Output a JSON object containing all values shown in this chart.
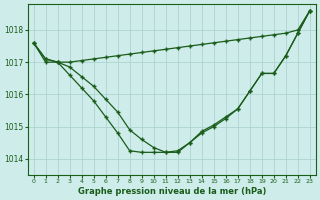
{
  "xlabel": "Graphe pression niveau de la mer (hPa)",
  "background_color": "#ceecea",
  "grid_color": "#aed4d0",
  "line_color": "#1a5c1a",
  "x_ticks": [
    0,
    1,
    2,
    3,
    4,
    5,
    6,
    7,
    8,
    9,
    10,
    11,
    12,
    13,
    14,
    15,
    16,
    17,
    18,
    19,
    20,
    21,
    22,
    23
  ],
  "ylim": [
    1013.5,
    1018.8
  ],
  "yticks": [
    1014,
    1015,
    1016,
    1017,
    1018
  ],
  "series1": [
    1017.6,
    1017.1,
    1017.0,
    1016.6,
    1016.2,
    1015.8,
    1015.3,
    1014.8,
    1014.25,
    1014.2,
    1014.2,
    1014.2,
    1014.2,
    1014.5,
    1014.8,
    1015.0,
    1015.25,
    1015.55,
    1016.1,
    1016.65,
    1016.65,
    1017.2,
    1017.9,
    1018.6
  ],
  "series2": [
    1017.6,
    1017.1,
    1017.0,
    1016.85,
    1016.55,
    1016.25,
    1015.85,
    1015.45,
    1014.9,
    1014.6,
    1014.35,
    1014.2,
    1014.25,
    1014.5,
    1014.85,
    1015.05,
    1015.3,
    1015.55,
    1016.1,
    1016.65,
    1016.65,
    1017.2,
    1017.9,
    1018.6
  ],
  "series3": [
    1017.6,
    1017.0,
    1017.0,
    1017.0,
    1017.05,
    1017.1,
    1017.15,
    1017.2,
    1017.25,
    1017.3,
    1017.35,
    1017.4,
    1017.45,
    1017.5,
    1017.55,
    1017.6,
    1017.65,
    1017.7,
    1017.75,
    1017.8,
    1017.85,
    1017.9,
    1018.0,
    1018.6
  ]
}
